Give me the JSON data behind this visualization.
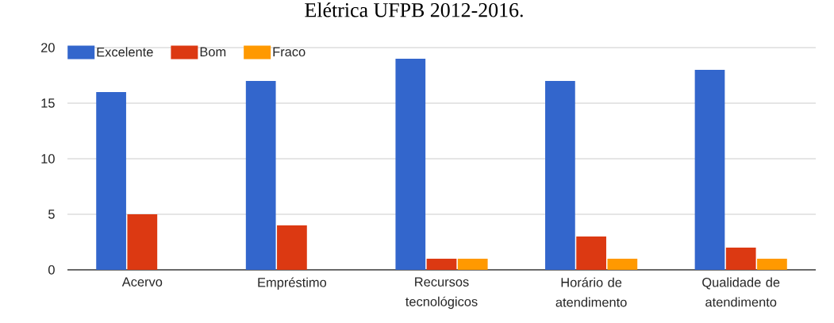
{
  "chart_data": {
    "type": "bar",
    "title": "Elétrica UFPB 2012-2016.",
    "categories": [
      "Acervo",
      "Empréstimo",
      "Recursos tecnológicos",
      "Horário de atendimento",
      "Qualidade de atendimento"
    ],
    "series": [
      {
        "name": "Excelente",
        "color": "#3366cc",
        "values": [
          16,
          17,
          19,
          17,
          18
        ]
      },
      {
        "name": "Bom",
        "color": "#dc3912",
        "values": [
          5,
          4,
          1,
          3,
          2
        ]
      },
      {
        "name": "Fraco",
        "color": "#ff9900",
        "values": [
          0,
          0,
          1,
          1,
          1
        ]
      }
    ],
    "ylim": [
      0,
      20
    ],
    "yticks": [
      0,
      5,
      10,
      15,
      20
    ],
    "grid": "y",
    "legend": "top left"
  }
}
